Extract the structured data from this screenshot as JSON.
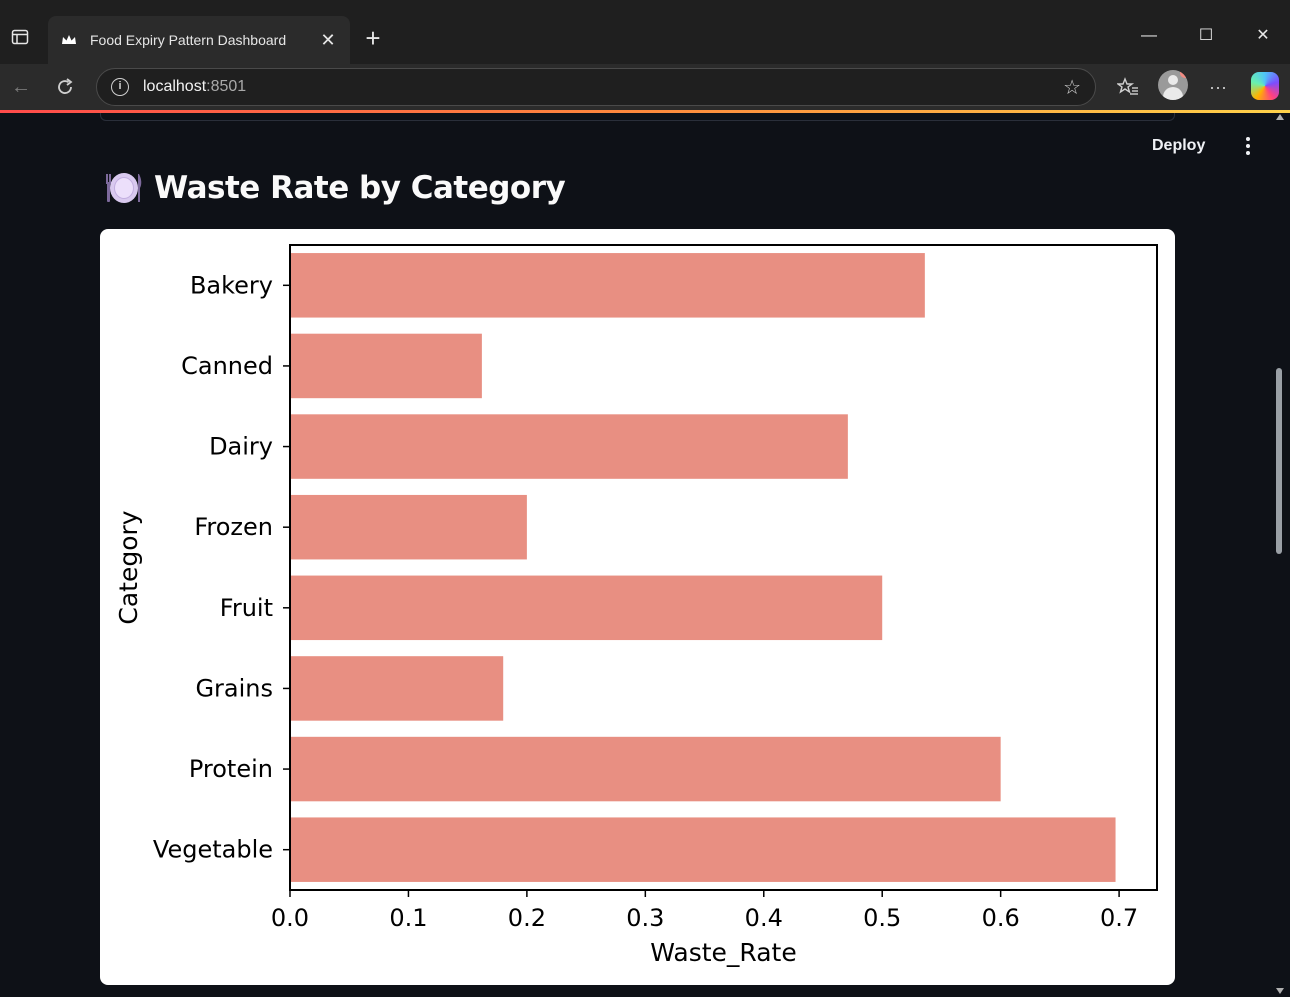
{
  "browser": {
    "tab_title": "Food Expiry Pattern Dashboard",
    "url_host": "localhost",
    "url_port": ":8501"
  },
  "app": {
    "deploy_label": "Deploy",
    "page_heading": "Waste Rate by Category",
    "heading_icon": "plate-with-cutlery-icon"
  },
  "colors": {
    "bar": "#e88f82",
    "page_bg": "#0e1117",
    "accent_gradient": [
      "#ff4b4b",
      "#ffd24a"
    ]
  },
  "chart_data": {
    "type": "bar",
    "orientation": "horizontal",
    "categories": [
      "Bakery",
      "Canned",
      "Dairy",
      "Frozen",
      "Fruit",
      "Grains",
      "Protein",
      "Vegetable"
    ],
    "values": [
      0.536,
      0.162,
      0.471,
      0.2,
      0.5,
      0.18,
      0.6,
      0.697
    ],
    "xlabel": "Waste_Rate",
    "ylabel": "Category",
    "xticks": [
      "0.0",
      "0.1",
      "0.2",
      "0.3",
      "0.4",
      "0.5",
      "0.6",
      "0.7"
    ],
    "xlim": [
      0,
      0.732
    ],
    "grid": false
  }
}
